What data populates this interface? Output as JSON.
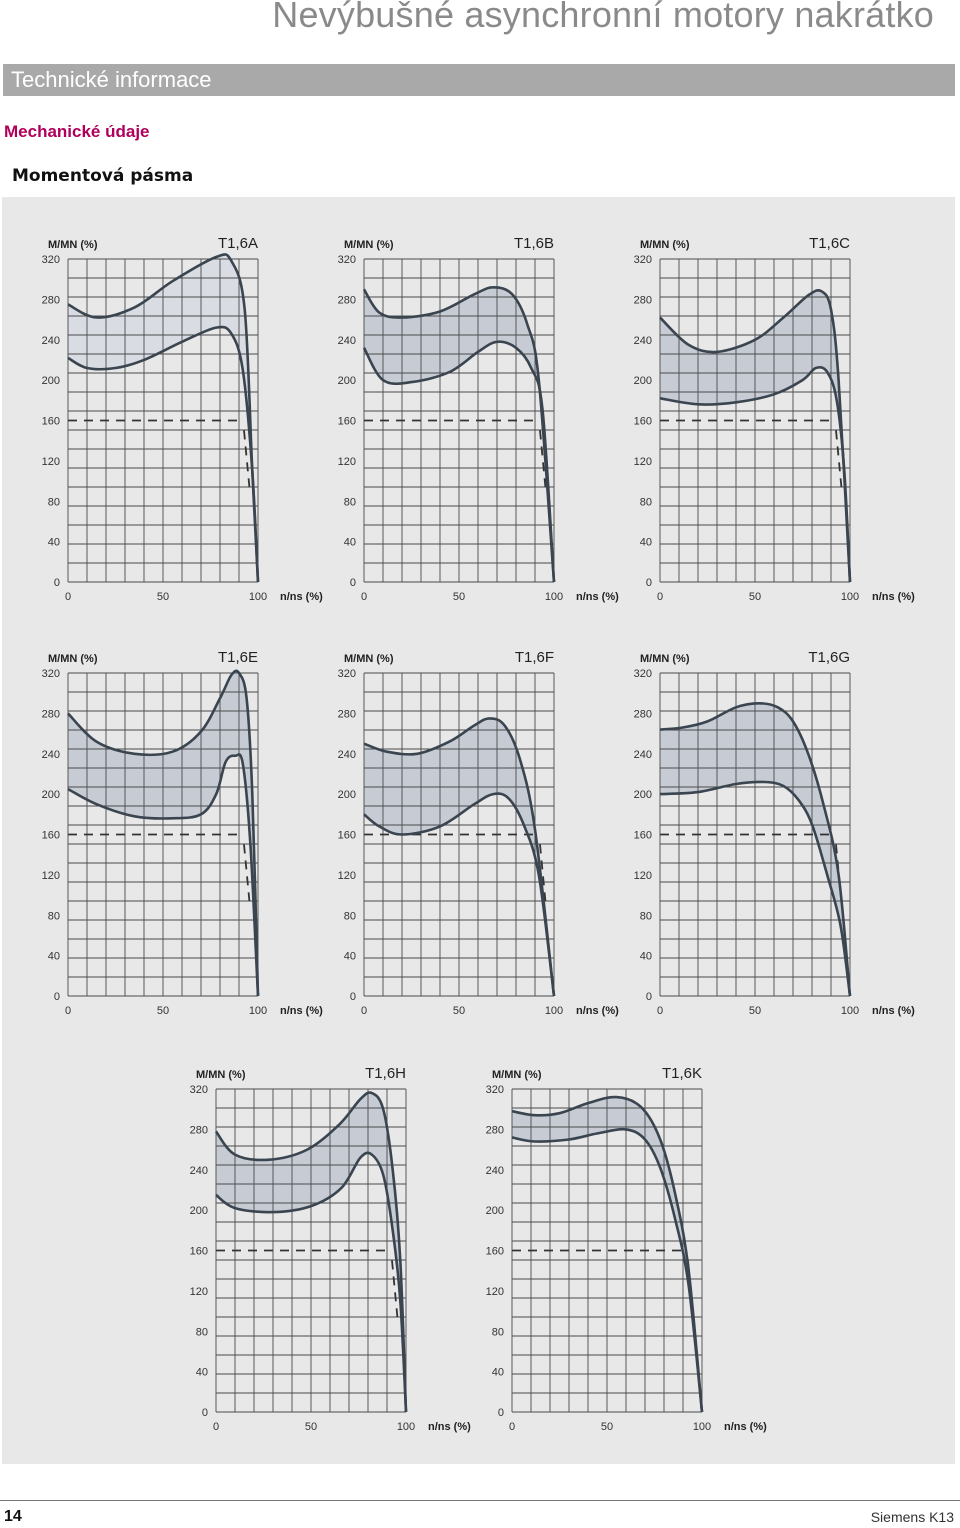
{
  "header": {
    "title": "Nevýbušné asynchronní motory nakrátko",
    "section": "Technické informace",
    "subsection": "Mechanické údaje",
    "chart_heading": "Momentová pásma"
  },
  "footer": {
    "page_number": "14",
    "brand": "Siemens K13"
  },
  "colors": {
    "band_fill": "#c7ccd4",
    "band_fill_light": "#d9dce2",
    "curve": "#3a4550",
    "grid": "#4a4a4a",
    "panel_bg": "#e8e8e8"
  },
  "chart_data": [
    {
      "type": "area",
      "title": "T1,6A",
      "ylabel": "M/MN (%)",
      "xlabel": "n/ns (%)",
      "xlim": [
        0,
        100
      ],
      "ylim": [
        0,
        320
      ],
      "x_ticks": [
        0,
        50,
        100
      ],
      "y_ticks": [
        0,
        40,
        80,
        120,
        160,
        200,
        240,
        280,
        320
      ],
      "grid": true,
      "legend": "none",
      "rated_line": 160,
      "series": [
        {
          "x": [
            0,
            15,
            35,
            55,
            78,
            86,
            93,
            97,
            100
          ],
          "values": [
            275,
            262,
            272,
            298,
            322,
            318,
            270,
            110,
            0
          ]
        },
        {
          "x": [
            0,
            10,
            25,
            40,
            60,
            78,
            86,
            92,
            97,
            100
          ],
          "values": [
            222,
            212,
            212,
            220,
            238,
            252,
            246,
            210,
            110,
            0
          ]
        }
      ]
    },
    {
      "type": "area",
      "title": "T1,6B",
      "ylabel": "M/MN (%)",
      "xlabel": "n/ns (%)",
      "xlim": [
        0,
        100
      ],
      "ylim": [
        0,
        320
      ],
      "x_ticks": [
        0,
        50,
        100
      ],
      "y_ticks": [
        0,
        40,
        80,
        120,
        160,
        200,
        240,
        280,
        320
      ],
      "grid": true,
      "legend": "none",
      "rated_line": 160,
      "series": [
        {
          "x": [
            0,
            8,
            20,
            40,
            58,
            68,
            78,
            86,
            92,
            100
          ],
          "values": [
            290,
            267,
            262,
            268,
            285,
            292,
            285,
            255,
            200,
            0
          ]
        },
        {
          "x": [
            0,
            10,
            25,
            45,
            60,
            70,
            80,
            88,
            94,
            100
          ],
          "values": [
            232,
            200,
            198,
            208,
            228,
            238,
            232,
            212,
            170,
            0
          ]
        }
      ]
    },
    {
      "type": "area",
      "title": "T1,6C",
      "ylabel": "M/MN (%)",
      "xlabel": "n/ns (%)",
      "xlim": [
        0,
        100
      ],
      "ylim": [
        0,
        320
      ],
      "x_ticks": [
        0,
        50,
        100
      ],
      "y_ticks": [
        0,
        40,
        80,
        120,
        160,
        200,
        240,
        280,
        320
      ],
      "grid": true,
      "legend": "none",
      "rated_line": 160,
      "series": [
        {
          "x": [
            0,
            15,
            30,
            50,
            65,
            78,
            85,
            90,
            94,
            100
          ],
          "values": [
            262,
            235,
            228,
            240,
            262,
            284,
            288,
            270,
            200,
            0
          ]
        },
        {
          "x": [
            0,
            20,
            40,
            60,
            75,
            82,
            88,
            93,
            97,
            100
          ],
          "values": [
            182,
            176,
            178,
            186,
            200,
            212,
            208,
            180,
            110,
            0
          ]
        }
      ]
    },
    {
      "type": "area",
      "title": "T1,6E",
      "ylabel": "M/MN (%)",
      "xlabel": "n/ns (%)",
      "xlim": [
        0,
        100
      ],
      "ylim": [
        0,
        320
      ],
      "x_ticks": [
        0,
        50,
        100
      ],
      "y_ticks": [
        0,
        40,
        80,
        120,
        160,
        200,
        240,
        280,
        320
      ],
      "grid": true,
      "legend": "none",
      "rated_line": 160,
      "series": [
        {
          "x": [
            0,
            15,
            35,
            55,
            70,
            80,
            86,
            90,
            94,
            97,
            100
          ],
          "values": [
            280,
            252,
            240,
            242,
            262,
            295,
            318,
            320,
            295,
            200,
            0
          ]
        },
        {
          "x": [
            0,
            15,
            35,
            55,
            70,
            78,
            83,
            88,
            92,
            96,
            100
          ],
          "values": [
            205,
            190,
            178,
            176,
            180,
            200,
            232,
            238,
            230,
            150,
            0
          ]
        }
      ]
    },
    {
      "type": "area",
      "title": "T1,6F",
      "ylabel": "M/MN (%)",
      "xlabel": "n/ns (%)",
      "xlim": [
        0,
        100
      ],
      "ylim": [
        0,
        320
      ],
      "x_ticks": [
        0,
        50,
        100
      ],
      "y_ticks": [
        0,
        40,
        80,
        120,
        160,
        200,
        240,
        280,
        320
      ],
      "grid": true,
      "legend": "none",
      "rated_line": 160,
      "series": [
        {
          "x": [
            0,
            12,
            28,
            45,
            58,
            66,
            74,
            82,
            90,
            100
          ],
          "values": [
            250,
            242,
            240,
            252,
            268,
            275,
            268,
            235,
            165,
            0
          ]
        },
        {
          "x": [
            0,
            8,
            20,
            40,
            58,
            68,
            76,
            84,
            92,
            100
          ],
          "values": [
            180,
            168,
            160,
            168,
            190,
            200,
            196,
            170,
            120,
            0
          ]
        }
      ]
    },
    {
      "type": "area",
      "title": "T1,6G",
      "ylabel": "M/MN (%)",
      "xlabel": "n/ns (%)",
      "xlim": [
        0,
        100
      ],
      "ylim": [
        0,
        320
      ],
      "x_ticks": [
        0,
        50,
        100
      ],
      "y_ticks": [
        0,
        40,
        80,
        120,
        160,
        200,
        240,
        280,
        320
      ],
      "grid": true,
      "legend": "none",
      "rated_line": 160,
      "series": [
        {
          "x": [
            0,
            12,
            25,
            40,
            52,
            62,
            70,
            78,
            86,
            94,
            100
          ],
          "values": [
            264,
            266,
            272,
            286,
            290,
            286,
            272,
            240,
            190,
            120,
            0
          ]
        },
        {
          "x": [
            0,
            20,
            40,
            55,
            65,
            73,
            80,
            88,
            95,
            100
          ],
          "values": [
            200,
            202,
            210,
            212,
            208,
            194,
            170,
            120,
            70,
            0
          ]
        }
      ]
    },
    {
      "type": "area",
      "title": "T1,6H",
      "ylabel": "M/MN (%)",
      "xlabel": "n/ns (%)",
      "xlim": [
        0,
        100
      ],
      "ylim": [
        0,
        320
      ],
      "x_ticks": [
        0,
        50,
        100
      ],
      "y_ticks": [
        0,
        40,
        80,
        120,
        160,
        200,
        240,
        280,
        320
      ],
      "grid": true,
      "legend": "none",
      "rated_line": 160,
      "series": [
        {
          "x": [
            0,
            10,
            28,
            48,
            65,
            76,
            82,
            88,
            93,
            97,
            100
          ],
          "values": [
            278,
            255,
            250,
            260,
            285,
            310,
            316,
            300,
            240,
            150,
            0
          ]
        },
        {
          "x": [
            0,
            10,
            30,
            50,
            66,
            76,
            82,
            88,
            93,
            97,
            100
          ],
          "values": [
            215,
            202,
            198,
            204,
            222,
            252,
            255,
            235,
            180,
            110,
            0
          ]
        }
      ]
    },
    {
      "type": "area",
      "title": "T1,6K",
      "ylabel": "M/MN (%)",
      "xlabel": "n/ns (%)",
      "xlim": [
        0,
        100
      ],
      "ylim": [
        0,
        320
      ],
      "x_ticks": [
        0,
        50,
        100
      ],
      "y_ticks": [
        0,
        40,
        80,
        120,
        160,
        200,
        240,
        280,
        320
      ],
      "grid": true,
      "legend": "none",
      "rated_line": 160,
      "series": [
        {
          "x": [
            0,
            12,
            25,
            40,
            55,
            68,
            78,
            86,
            93,
            100
          ],
          "values": [
            298,
            294,
            296,
            306,
            312,
            302,
            270,
            215,
            140,
            0
          ]
        },
        {
          "x": [
            0,
            12,
            30,
            45,
            60,
            70,
            78,
            86,
            93,
            100
          ],
          "values": [
            272,
            268,
            270,
            276,
            280,
            270,
            242,
            190,
            125,
            0
          ]
        }
      ]
    }
  ]
}
